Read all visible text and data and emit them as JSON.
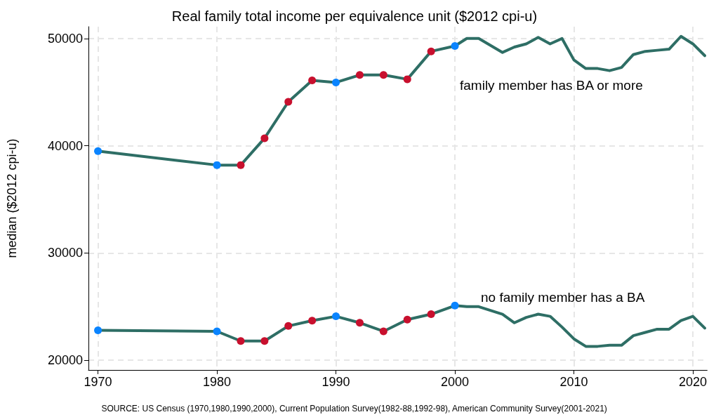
{
  "chart_data": {
    "type": "line",
    "title": "Real family total income per equivalence unit ($2012 cpi-u)",
    "ylabel": "median ($2012 cpi-u)",
    "xlim": [
      1969.2,
      2021.2
    ],
    "xticks": [
      1970,
      1980,
      1990,
      2000,
      2010,
      2020
    ],
    "ylim": [
      19100,
      51100
    ],
    "yticks": [
      20000,
      30000,
      40000,
      50000
    ],
    "grid": true,
    "line_style": "solid",
    "series": [
      {
        "color": "#2e6e65",
        "marker": "none",
        "x": [
          1970,
          1980,
          1982,
          1984,
          1986,
          1988,
          1990,
          1992,
          1994,
          1996,
          1998,
          2000,
          2001,
          2002,
          2004,
          2005,
          2006,
          2007,
          2008,
          2009,
          2010,
          2011,
          2012,
          2013,
          2014,
          2015,
          2016,
          2017,
          2018,
          2019,
          2020,
          2021
        ],
        "values": [
          39500,
          38200,
          38200,
          40700,
          44100,
          46100,
          45900,
          46600,
          46600,
          46200,
          48800,
          49300,
          50000,
          50000,
          48700,
          49200,
          49500,
          50100,
          49500,
          50000,
          48000,
          47200,
          47200,
          47000,
          47300,
          48500,
          48800,
          48900,
          49000,
          50200,
          49500,
          48400
        ]
      },
      {
        "color": "#2e6e65",
        "marker": "none",
        "x": [
          1970,
          1980,
          1982,
          1984,
          1986,
          1988,
          1990,
          1992,
          1994,
          1996,
          1998,
          2000,
          2001,
          2002,
          2004,
          2005,
          2006,
          2007,
          2008,
          2009,
          2010,
          2011,
          2012,
          2013,
          2014,
          2015,
          2016,
          2017,
          2018,
          2019,
          2020,
          2021
        ],
        "values": [
          22800,
          22700,
          21800,
          21800,
          23200,
          23700,
          24100,
          23500,
          22700,
          23800,
          24300,
          25100,
          25000,
          25000,
          24300,
          23500,
          24000,
          24300,
          24100,
          23100,
          22000,
          21300,
          21300,
          21400,
          21400,
          22300,
          22600,
          22900,
          22900,
          23700,
          24100,
          23000
        ]
      },
      {
        "type": "scatter",
        "color": "#0a84ff",
        "marker": "circle",
        "x": [
          1970,
          1980,
          1990,
          2000,
          1970,
          1980,
          1990,
          2000
        ],
        "values": [
          39500,
          38200,
          45900,
          49300,
          22800,
          22700,
          24100,
          25100
        ]
      },
      {
        "type": "scatter",
        "color": "#c8102e",
        "marker": "circle",
        "x": [
          1982,
          1984,
          1986,
          1988,
          1992,
          1994,
          1996,
          1998,
          1982,
          1984,
          1986,
          1988,
          1992,
          1994,
          1996,
          1998
        ],
        "values": [
          38200,
          40700,
          44100,
          46100,
          46600,
          46600,
          46200,
          48800,
          21800,
          21800,
          23200,
          23700,
          23500,
          22700,
          23800,
          24300
        ]
      }
    ],
    "annotations": [
      "family member has BA or more",
      "no family member has a BA",
      "SOURCE: US Census (1970,1980,1990,2000), Current Population Survey(1982-88,1992-98), American Community Survey(2001-2021)"
    ]
  }
}
